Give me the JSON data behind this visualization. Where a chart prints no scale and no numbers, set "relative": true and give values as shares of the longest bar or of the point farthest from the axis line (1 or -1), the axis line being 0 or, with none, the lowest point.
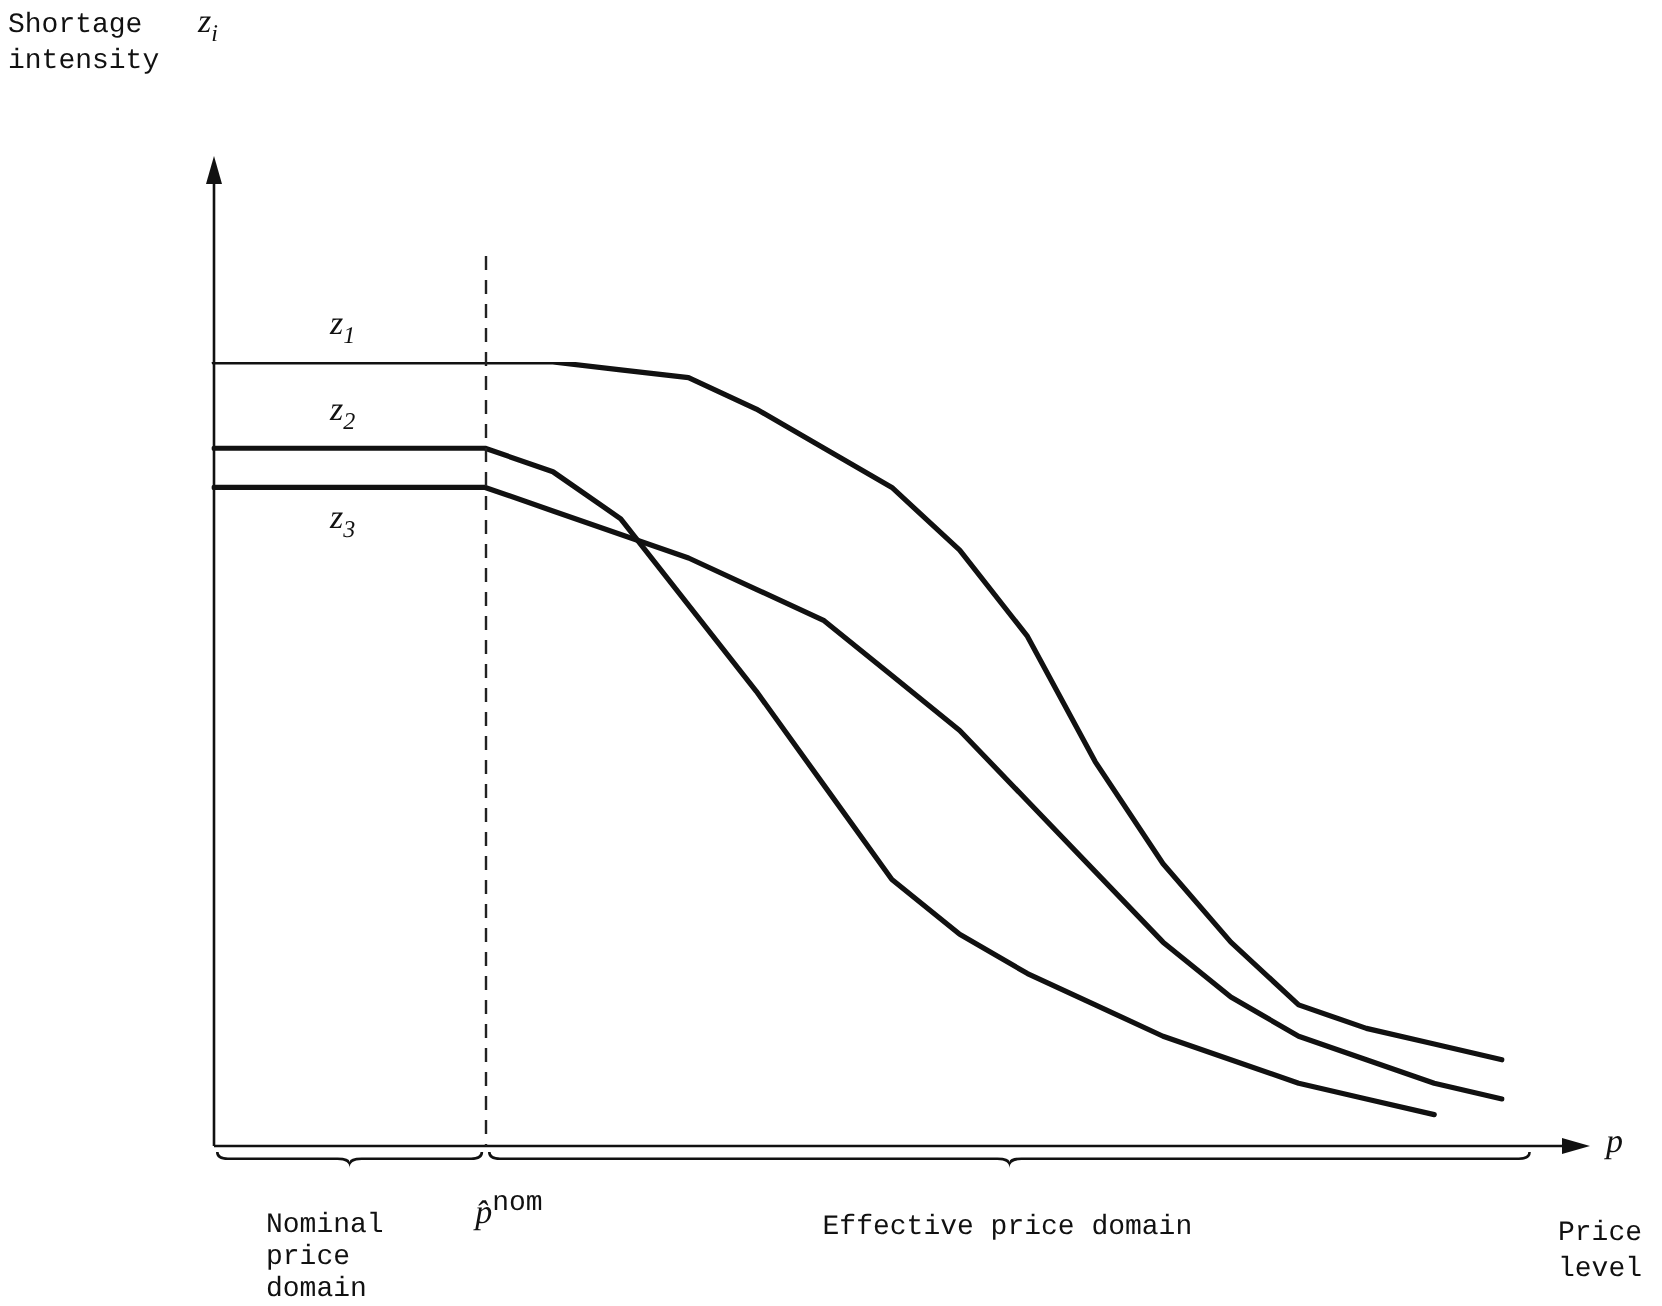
{
  "chart_data": {
    "type": "line",
    "relative": true,
    "xlabel": "Price level",
    "annotations": [
      "z$_{i}$",
      "p",
      "p̂$^{nom}$",
      "Nominal price domain",
      "Effective price domain",
      "Shortage intensity"
    ],
    "categories": [
      null,
      null,
      null,
      null,
      null,
      null,
      null,
      null,
      null,
      null,
      null,
      null,
      null,
      null,
      null,
      null,
      null,
      null,
      null,
      null
    ],
    "grid": false,
    "legend": false,
    "marker": "none",
    "line_style": "solid",
    "series": [
      {
        "name": "z$_{1}$",
        "color": "#111111",
        "values": [
          1,
          1,
          1,
          1,
          1,
          1,
          0.99,
          0.98,
          0.94,
          0.89,
          0.84,
          0.76,
          0.65,
          0.49,
          0.36,
          0.26,
          0.18,
          0.15,
          0.13,
          0.11
        ]
      },
      {
        "name": "z$_{2}$",
        "color": "#111111",
        "values": [
          0.89,
          0.89,
          0.89,
          0.89,
          0.89,
          0.86,
          0.8,
          0.69,
          0.58,
          0.46,
          0.34,
          0.27,
          0.22,
          0.18,
          0.14,
          0.11,
          0.08,
          0.06,
          0.04,
          null
        ]
      },
      {
        "name": "z$_{3}$",
        "color": "#111111",
        "values": [
          0.84,
          0.84,
          0.84,
          0.84,
          0.84,
          0.81,
          0.78,
          0.75,
          0.71,
          0.67,
          0.6,
          0.53,
          0.44,
          0.35,
          0.26,
          0.19,
          0.14,
          0.11,
          0.08,
          0.06
        ]
      }
    ]
  }
}
